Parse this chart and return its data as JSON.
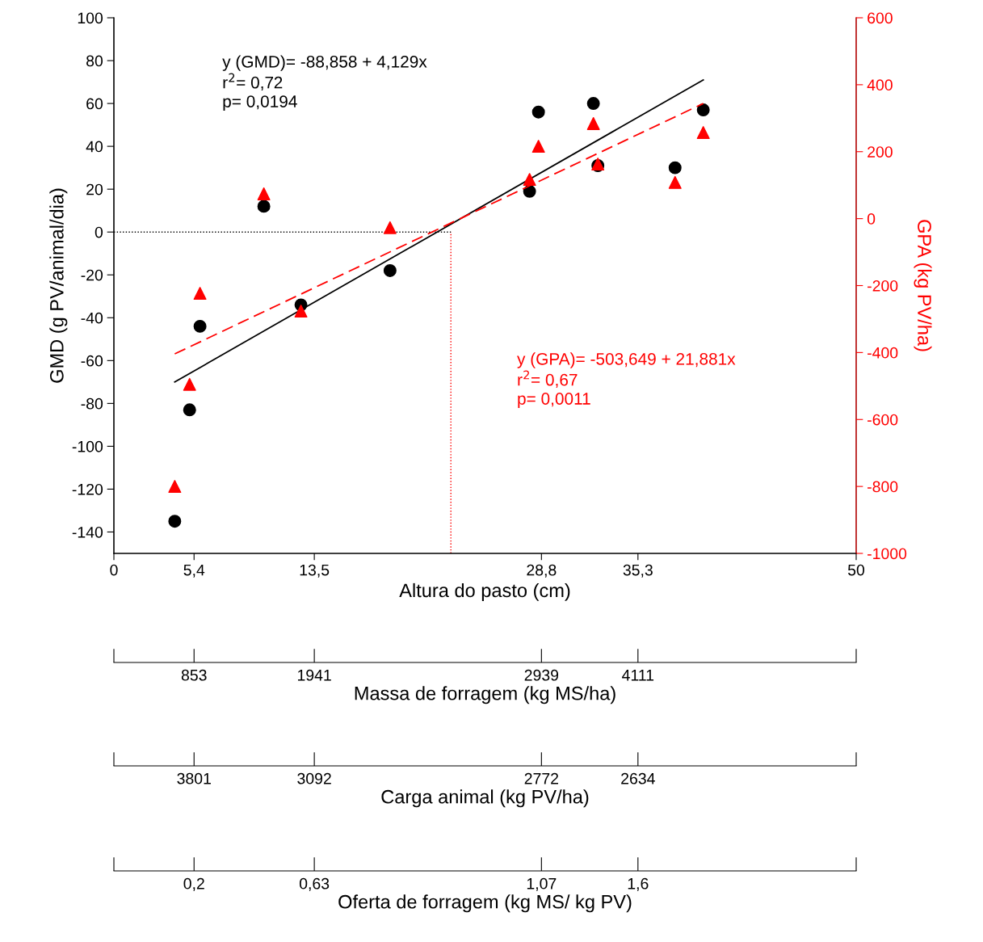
{
  "chart_data": [
    {
      "type": "scatter",
      "xlabel": "Altura do pasto (cm)",
      "ylabel": "GMD (g PV/animal/dia)",
      "y2label": "GPA (kg PV/ha)",
      "xlim": [
        0,
        50
      ],
      "xticks": [
        0,
        {
          "value": 5.4,
          "label": "5,4"
        },
        {
          "value": 13.5,
          "label": "13,5"
        },
        {
          "value": 28.8,
          "label": "28,8"
        },
        {
          "value": 35.3,
          "label": "35,3"
        },
        50
      ],
      "ylim": [
        -150,
        100
      ],
      "yticks": [
        -140,
        -120,
        -100,
        -80,
        -60,
        -40,
        -20,
        0,
        20,
        40,
        60,
        80,
        100
      ],
      "y2lim": [
        -1000,
        600
      ],
      "y2ticks": [
        -1000,
        -800,
        -600,
        -400,
        -200,
        0,
        200,
        400,
        600
      ],
      "series": [
        {
          "color": "#000000",
          "marker": "circle",
          "x": [
            4.1,
            5.1,
            5.8,
            10.1,
            12.6,
            18.6,
            28.0,
            28.6,
            32.3,
            32.6,
            37.8,
            39.7
          ],
          "values": [
            -135,
            -83,
            -44,
            12,
            -34,
            -18,
            19,
            56,
            60,
            31,
            30,
            57
          ]
        },
        {
          "color": "#ff0000",
          "marker": "triangle",
          "axis": "y2",
          "x": [
            4.1,
            5.1,
            5.8,
            10.1,
            12.6,
            18.6,
            28.0,
            28.6,
            32.3,
            32.6,
            37.8,
            39.7
          ],
          "values": [
            -800,
            -495,
            -223,
            74,
            -276,
            -27,
            117,
            216,
            284,
            163,
            108,
            257
          ]
        },
        {
          "type": "line",
          "color": "#000000",
          "line_style": "solid",
          "x": [
            4.1,
            39.7
          ],
          "values": [
            -70,
            71
          ]
        },
        {
          "type": "line",
          "color": "#ff0000",
          "line_style": "dashed",
          "axis": "y2",
          "x": [
            4.1,
            39.7
          ],
          "values": [
            -404,
            344
          ]
        }
      ],
      "ref_lines": [
        {
          "axis": "y",
          "value": 0,
          "color": "#000000",
          "line_style": "dotted"
        },
        {
          "axis": "x",
          "value": 22.7,
          "color": "#ff0000",
          "line_style": "dotted"
        }
      ],
      "annotations": [
        "y (GMD)= -88,858 + 4,129x\nr$^{2}$= 0,72\np= 0,0194",
        "y (GPA)= -503,649 + 21,881x\nr$^{2}$= 0,67\np= 0,0011"
      ]
    },
    {
      "type": "other",
      "xlabel": "Massa de forragem (kg MS/ha)",
      "categories": [
        null,
        "853",
        "1941",
        "2939",
        "4111",
        null
      ]
    },
    {
      "type": "other",
      "xlabel": "Carga animal (kg PV/ha)",
      "categories": [
        null,
        "3801",
        "3092",
        "2772",
        "2634",
        null
      ]
    },
    {
      "type": "other",
      "xlabel": "Oferta de forragem (kg MS/ kg PV)",
      "categories": [
        null,
        "0,2",
        "0,63",
        "1,07",
        "1,6",
        null
      ]
    }
  ]
}
